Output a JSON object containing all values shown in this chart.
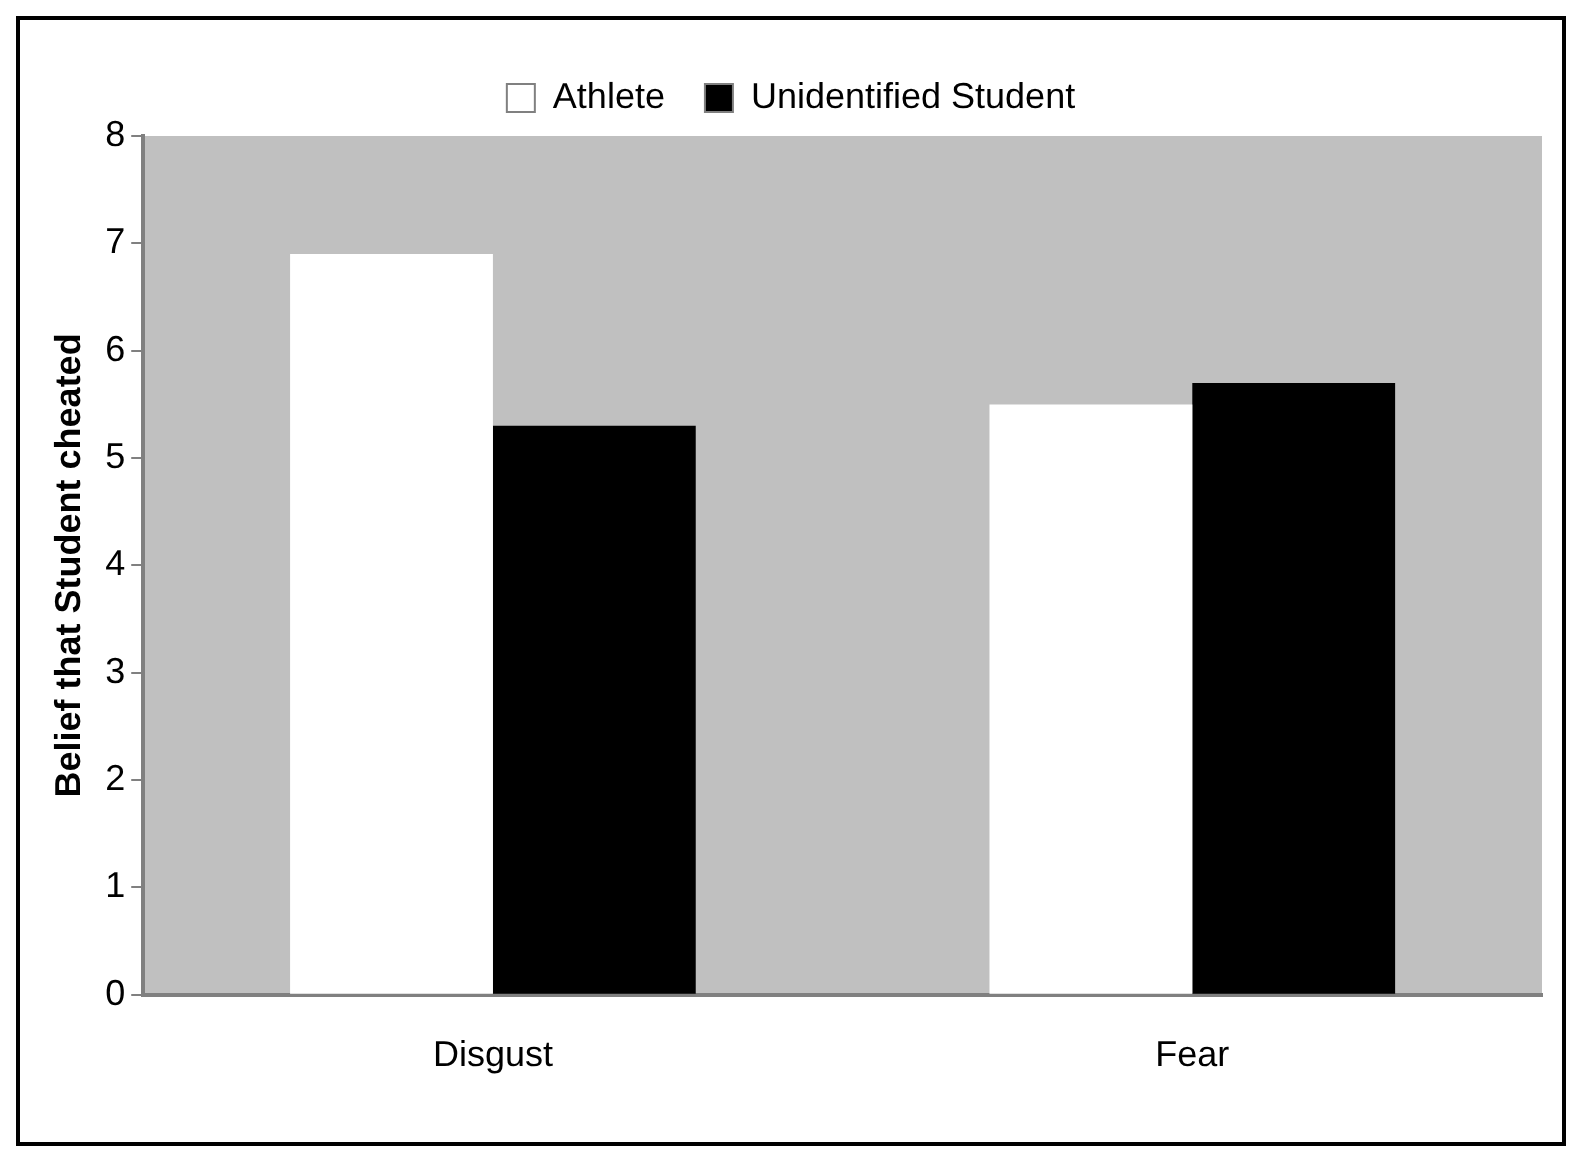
{
  "chart_data": {
    "type": "bar",
    "ylabel": "Belief that Student cheated",
    "categories": [
      "Disgust",
      "Fear"
    ],
    "series": [
      {
        "name": "Athlete",
        "color": "#ffffff",
        "values": [
          6.9,
          5.5
        ]
      },
      {
        "name": "Unidentified Student",
        "color": "#000000",
        "values": [
          5.3,
          5.7
        ]
      }
    ],
    "ylim": [
      0,
      8
    ],
    "yticks": [
      0,
      1,
      2,
      3,
      4,
      5,
      6,
      7,
      8
    ],
    "grid": false,
    "legend": "top"
  }
}
